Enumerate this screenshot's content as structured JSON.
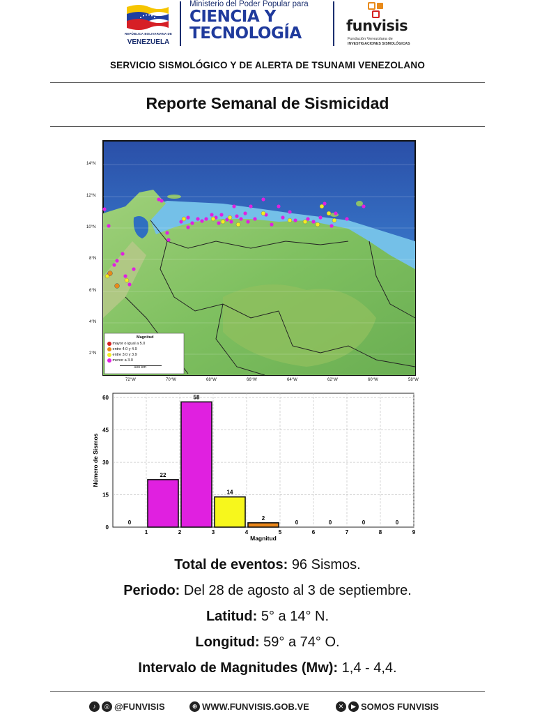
{
  "header": {
    "flag_org": "REPÚBLICA BOLIVARIANA DE",
    "flag_country": "VENEZUELA",
    "ministry_top": "Ministerio del Poder Popular para",
    "ministry_line1": "CIENCIA Y",
    "ministry_line2": "TECNOLOGÍA",
    "funvisis_name": "funvisis",
    "funvisis_sub1": "Fundación Venezolana de",
    "funvisis_sub2": "INVESTIGACIONES SISMOLÓGICAS"
  },
  "service_title": "SERVICIO SISMOLÓGICO Y DE ALERTA DE TSUNAMI VENEZOLANO",
  "report_title": "Reporte Semanal de Sismicidad",
  "map": {
    "lat_labels": [
      "14°N",
      "12°N",
      "10°N",
      "8°N",
      "6°N",
      "4°N",
      "2°N"
    ],
    "lon_labels": [
      "72°W",
      "70°W",
      "68°W",
      "66°W",
      "64°W",
      "62°W",
      "60°W",
      "58°W"
    ],
    "legend_title": "Magnitud",
    "legend_items": [
      {
        "label": "mayor o igual a 5.0",
        "color": "#d42020"
      },
      {
        "label": "entre 4.0 y 4.9",
        "color": "#e88a1a"
      },
      {
        "label": "entre 3.0 y 3.9",
        "color": "#f2ee20"
      },
      {
        "label": "menor a 3.0",
        "color": "#e020e0"
      }
    ],
    "scale_label": "300 km"
  },
  "chart_data": {
    "type": "bar",
    "xlabel": "Magnitud",
    "ylabel": "Número de Sismos",
    "xlim": [
      0,
      9
    ],
    "ylim": [
      0,
      62
    ],
    "yticks": [
      0,
      15,
      30,
      45,
      60
    ],
    "xticks": [
      1,
      2,
      3,
      4,
      5,
      6,
      7,
      8,
      9
    ],
    "bins": [
      {
        "from": 0,
        "to": 1,
        "value": 0,
        "color": "#e020e0"
      },
      {
        "from": 1,
        "to": 2,
        "value": 22,
        "color": "#e020e0"
      },
      {
        "from": 2,
        "to": 3,
        "value": 58,
        "color": "#e020e0"
      },
      {
        "from": 3,
        "to": 4,
        "value": 14,
        "color": "#f7f71c"
      },
      {
        "from": 4,
        "to": 5,
        "value": 2,
        "color": "#e8861a"
      },
      {
        "from": 5,
        "to": 6,
        "value": 0,
        "color": "#e8861a"
      },
      {
        "from": 6,
        "to": 7,
        "value": 0,
        "color": "#d42020"
      },
      {
        "from": 7,
        "to": 8,
        "value": 0,
        "color": "#d42020"
      },
      {
        "from": 8,
        "to": 9,
        "value": 0,
        "color": "#d42020"
      }
    ],
    "grid": true
  },
  "summary": {
    "total_label": "Total de eventos:",
    "total_value": "96 Sismos.",
    "period_label": "Periodo:",
    "period_value": "Del 28 de agosto al 3 de septiembre.",
    "lat_label": "Latitud:",
    "lat_value": "5° a 14° N.",
    "lon_label": "Longitud:",
    "lon_value": "59° a 74° O.",
    "mag_label": "Intervalo de Magnitudes (Mw):",
    "mag_value": "1,4 - 4,4."
  },
  "footer": {
    "social": "@FUNVISIS",
    "web": "WWW.FUNVISIS.GOB.VE",
    "somos": "SOMOS FUNVISIS"
  }
}
